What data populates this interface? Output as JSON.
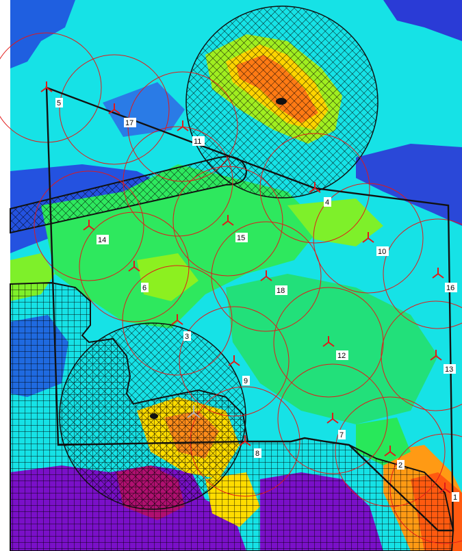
{
  "colors": {
    "sea_blue": "#1f5fe0",
    "deep_blue": "#2a3bd6",
    "cyan": "#12e4e0",
    "aqua": "#18f0c8",
    "green": "#28e85a",
    "lime": "#8cf020",
    "yellow": "#f2e600",
    "orange": "#ff8c1a",
    "red_orange": "#ff5a10",
    "purple": "#7a10c8",
    "marker_red": "#e11919",
    "boundary": "#111111"
  },
  "icons": {
    "station_marker": "tri-branch-marker-icon",
    "sensor_marker": "gray-tri-marker-icon"
  },
  "stations": [
    {
      "id": "1",
      "label": "1"
    },
    {
      "id": "2",
      "label": "2"
    },
    {
      "id": "3",
      "label": "3"
    },
    {
      "id": "4",
      "label": "4"
    },
    {
      "id": "5",
      "label": "5"
    },
    {
      "id": "6",
      "label": "6"
    },
    {
      "id": "7",
      "label": "7"
    },
    {
      "id": "8",
      "label": "8"
    },
    {
      "id": "9",
      "label": "9"
    },
    {
      "id": "10",
      "label": "10"
    },
    {
      "id": "11",
      "label": "11"
    },
    {
      "id": "12",
      "label": "12"
    },
    {
      "id": "13",
      "label": "13"
    },
    {
      "id": "14",
      "label": "14"
    },
    {
      "id": "15",
      "label": "15"
    },
    {
      "id": "16",
      "label": "16"
    },
    {
      "id": "17",
      "label": "17"
    },
    {
      "id": "18",
      "label": "18"
    }
  ]
}
